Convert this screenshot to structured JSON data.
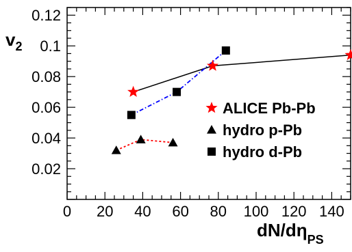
{
  "chart_data": {
    "type": "scatter",
    "xlabel": "dN/dη",
    "xlabel_sub": "PS",
    "ylabel": "v",
    "ylabel_sub": "2",
    "xlim": [
      0,
      150
    ],
    "ylim": [
      0,
      0.125
    ],
    "x_ticks": [
      0,
      20,
      40,
      60,
      80,
      100,
      120,
      140
    ],
    "x_tick_labels": [
      "0",
      "20",
      "40",
      "60",
      "80",
      "100",
      "120",
      "140"
    ],
    "y_ticks": [
      0.02,
      0.04,
      0.06,
      0.08,
      0.1,
      0.12
    ],
    "y_tick_labels": [
      "0.02",
      "0.04",
      "0.06",
      "0.08",
      "0.1",
      "0.12"
    ],
    "grid": false,
    "legend_position": "right",
    "series": [
      {
        "name": "ALICE Pb-Pb",
        "marker": "star",
        "marker_color": "#ff0000",
        "line_color": "#000000",
        "line_style": "solid",
        "points": [
          [
            35,
            0.07
          ],
          [
            77,
            0.087
          ],
          [
            150,
            0.094
          ]
        ]
      },
      {
        "name": "hydro p-Pb",
        "marker": "triangle",
        "marker_color": "#000000",
        "line_color": "#ff0000",
        "line_style": "dotted",
        "points": [
          [
            26,
            0.032
          ],
          [
            39,
            0.039
          ],
          [
            56,
            0.037
          ]
        ]
      },
      {
        "name": "hydro d-Pb",
        "marker": "square",
        "marker_color": "#000000",
        "line_color": "#0000ff",
        "line_style": "dashdot",
        "points": [
          [
            34,
            0.055
          ],
          [
            58,
            0.07
          ],
          [
            84,
            0.097
          ]
        ]
      }
    ]
  }
}
